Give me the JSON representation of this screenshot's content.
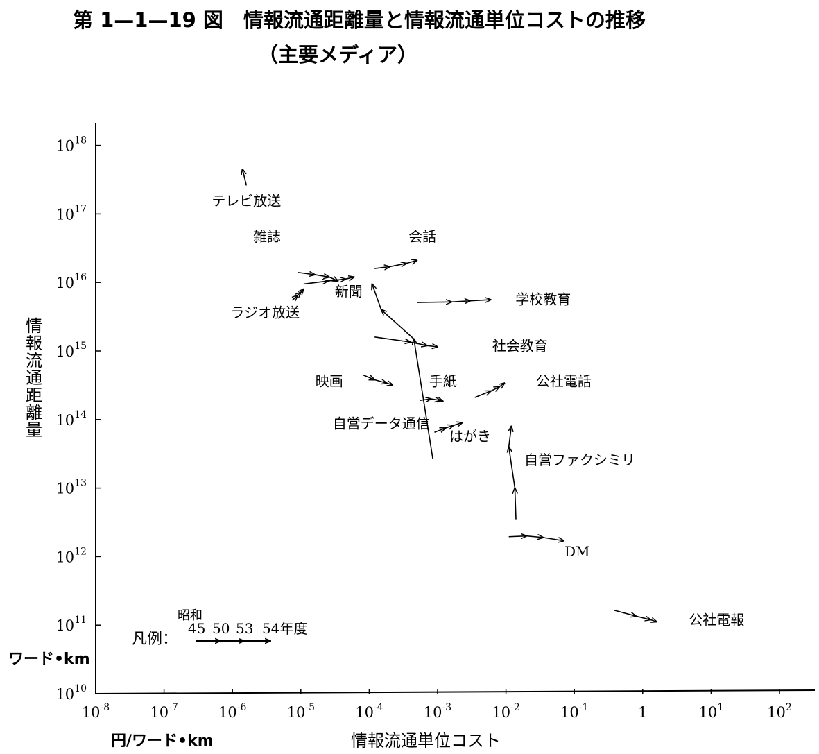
{
  "title_line1": "第 1—1—19 図　情報流通距離量と情報流通単位コストの推移",
  "title_line2": "（主要メディア）",
  "y_axis_label": "情報流通距離量",
  "y_axis_unit": "ワード•km",
  "x_axis_label": "情報流通単位コスト",
  "x_axis_unit": "円/ワード•km",
  "legend": {
    "prefix": "凡例：",
    "era": "昭和",
    "years": [
      "45",
      "50",
      "53",
      "54年度"
    ]
  },
  "chart_data": {
    "type": "scatter",
    "x_scale": "log",
    "y_scale": "log",
    "xlim": [
      1e-08,
      100
    ],
    "ylim": [
      10000000000.0,
      1e+18
    ],
    "grid": false,
    "x_ticks": [
      {
        "value": 1e-08,
        "base": "10",
        "exp": "-8"
      },
      {
        "value": 1e-07,
        "base": "10",
        "exp": "-7"
      },
      {
        "value": 1e-06,
        "base": "10",
        "exp": "-6"
      },
      {
        "value": 1e-05,
        "base": "10",
        "exp": "-5"
      },
      {
        "value": 0.0001,
        "base": "10",
        "exp": "-4"
      },
      {
        "value": 0.001,
        "base": "10",
        "exp": "-3"
      },
      {
        "value": 0.01,
        "base": "10",
        "exp": "-2"
      },
      {
        "value": 0.1,
        "base": "10",
        "exp": "-1"
      },
      {
        "value": 1,
        "base": "1",
        "exp": ""
      },
      {
        "value": 10,
        "base": "10",
        "exp": "1"
      },
      {
        "value": 100,
        "base": "10",
        "exp": "2"
      }
    ],
    "y_ticks": [
      {
        "value": 10000000000.0,
        "base": "10",
        "exp": "10"
      },
      {
        "value": 100000000000.0,
        "base": "10",
        "exp": "11"
      },
      {
        "value": 1000000000000.0,
        "base": "10",
        "exp": "12"
      },
      {
        "value": 10000000000000.0,
        "base": "10",
        "exp": "13"
      },
      {
        "value": 100000000000000.0,
        "base": "10",
        "exp": "14"
      },
      {
        "value": 1000000000000000.0,
        "base": "10",
        "exp": "15"
      },
      {
        "value": 1e+16,
        "base": "10",
        "exp": "16"
      },
      {
        "value": 1e+17,
        "base": "10",
        "exp": "17"
      },
      {
        "value": 1e+18,
        "base": "10",
        "exp": "18"
      }
    ],
    "series": [
      {
        "name": "テレビ放送",
        "label_anchor": {
          "x": 1.6e-06,
          "y": 1.5e+17
        },
        "points": [
          {
            "x": 1.6e-06,
            "y": 2.6e+17
          },
          {
            "x": 1.4e-06,
            "y": 4.5e+17
          }
        ]
      },
      {
        "name": "雑誌",
        "label_anchor": {
          "x": 3.2e-06,
          "y": 4.5e+16
        },
        "points": [
          {
            "x": 9e-06,
            "y": 1.4e+16
          },
          {
            "x": 1.6e-05,
            "y": 1.3e+16
          },
          {
            "x": 2.6e-05,
            "y": 1.2e+16
          },
          {
            "x": 3.5e-05,
            "y": 1.05e+16
          }
        ]
      },
      {
        "name": "新聞",
        "label_anchor": {
          "x": 5e-05,
          "y": 7200000000000000.0
        },
        "points": [
          {
            "x": 1.1e-05,
            "y": 9500000000000000.0
          },
          {
            "x": 2.5e-05,
            "y": 1.05e+16
          },
          {
            "x": 4.5e-05,
            "y": 1.12e+16
          },
          {
            "x": 6e-05,
            "y": 1.2e+16
          }
        ]
      },
      {
        "name": "ラジオ放送",
        "label_anchor": {
          "x": 3e-06,
          "y": 3500000000000000.0
        },
        "points": [
          {
            "x": 7.5e-06,
            "y": 5500000000000000.0
          },
          {
            "x": 9e-06,
            "y": 6500000000000000.0
          },
          {
            "x": 1e-05,
            "y": 7200000000000000.0
          },
          {
            "x": 1.1e-05,
            "y": 8000000000000000.0
          }
        ]
      },
      {
        "name": "会話",
        "label_anchor": {
          "x": 0.0006,
          "y": 4.5e+16
        },
        "points": [
          {
            "x": 0.00012,
            "y": 1.6e+16
          },
          {
            "x": 0.0002,
            "y": 1.7e+16
          },
          {
            "x": 0.00035,
            "y": 1.9e+16
          },
          {
            "x": 0.0005,
            "y": 2.1e+16
          }
        ]
      },
      {
        "name": "学校教育",
        "label_anchor": {
          "x": 0.035,
          "y": 5500000000000000.0
        },
        "points": [
          {
            "x": 0.0005,
            "y": 5100000000000000.0
          },
          {
            "x": 0.0016,
            "y": 5200000000000000.0
          },
          {
            "x": 0.003,
            "y": 5400000000000000.0
          },
          {
            "x": 0.006,
            "y": 5600000000000000.0
          }
        ]
      },
      {
        "name": "社会教育",
        "label_anchor": {
          "x": 0.016,
          "y": 1150000000000000.0
        },
        "points": [
          {
            "x": 0.00012,
            "y": 1600000000000000.0
          },
          {
            "x": 0.0004,
            "y": 1350000000000000.0
          },
          {
            "x": 0.0007,
            "y": 1200000000000000.0
          },
          {
            "x": 0.001,
            "y": 1150000000000000.0
          }
        ]
      },
      {
        "name": "映画",
        "label_anchor": {
          "x": 2.6e-05,
          "y": 350000000000000.0
        },
        "points": [
          {
            "x": 8e-05,
            "y": 450000000000000.0
          },
          {
            "x": 0.00012,
            "y": 380000000000000.0
          },
          {
            "x": 0.00018,
            "y": 340000000000000.0
          },
          {
            "x": 0.00022,
            "y": 320000000000000.0
          }
        ]
      },
      {
        "name": "手紙",
        "label_anchor": {
          "x": 0.0012,
          "y": 350000000000000.0
        },
        "points": [
          {
            "x": 0.00055,
            "y": 190000000000000.0
          },
          {
            "x": 0.0008,
            "y": 200000000000000.0
          },
          {
            "x": 0.0011,
            "y": 190000000000000.0
          },
          {
            "x": 0.0012,
            "y": 185000000000000.0
          }
        ]
      },
      {
        "name": "公社電話",
        "label_anchor": {
          "x": 0.07,
          "y": 350000000000000.0
        },
        "points": [
          {
            "x": 0.0035,
            "y": 210000000000000.0
          },
          {
            "x": 0.006,
            "y": 260000000000000.0
          },
          {
            "x": 0.008,
            "y": 300000000000000.0
          },
          {
            "x": 0.0095,
            "y": 340000000000000.0
          }
        ]
      },
      {
        "name": "自営データ通信",
        "label_anchor": {
          "x": 0.00015,
          "y": 85000000000000.0
        },
        "points": [
          {
            "x": 0.00085,
            "y": 27000000000000.0
          },
          {
            "x": 0.00045,
            "y": 1500000000000000.0
          },
          {
            "x": 0.00015,
            "y": 4000000000000000.0
          },
          {
            "x": 0.00011,
            "y": 9500000000000000.0
          }
        ]
      },
      {
        "name": "はがき",
        "label_anchor": {
          "x": 0.003,
          "y": 55000000000000.0
        },
        "points": [
          {
            "x": 0.0009,
            "y": 65000000000000.0
          },
          {
            "x": 0.0013,
            "y": 75000000000000.0
          },
          {
            "x": 0.0017,
            "y": 82000000000000.0
          },
          {
            "x": 0.0023,
            "y": 90000000000000.0
          }
        ]
      },
      {
        "name": "自営ファクシミリ",
        "label_anchor": {
          "x": 0.12,
          "y": 25000000000000.0
        },
        "points": [
          {
            "x": 0.014,
            "y": 3500000000000.0
          },
          {
            "x": 0.0135,
            "y": 10000000000000.0
          },
          {
            "x": 0.011,
            "y": 40000000000000.0
          },
          {
            "x": 0.012,
            "y": 80000000000000.0
          }
        ]
      },
      {
        "name": "DM",
        "label_anchor": {
          "x": 0.11,
          "y": 1150000000000.0
        },
        "points": [
          {
            "x": 0.011,
            "y": 1950000000000.0
          },
          {
            "x": 0.02,
            "y": 2000000000000.0
          },
          {
            "x": 0.035,
            "y": 1900000000000.0
          },
          {
            "x": 0.07,
            "y": 1700000000000.0
          }
        ]
      },
      {
        "name": "公社電報",
        "label_anchor": {
          "x": 12.0,
          "y": 115000000000.0
        },
        "points": [
          {
            "x": 0.38,
            "y": 165000000000.0
          },
          {
            "x": 0.8,
            "y": 135000000000.0
          },
          {
            "x": 1.3,
            "y": 120000000000.0
          },
          {
            "x": 1.6,
            "y": 112000000000.0
          }
        ]
      }
    ]
  }
}
